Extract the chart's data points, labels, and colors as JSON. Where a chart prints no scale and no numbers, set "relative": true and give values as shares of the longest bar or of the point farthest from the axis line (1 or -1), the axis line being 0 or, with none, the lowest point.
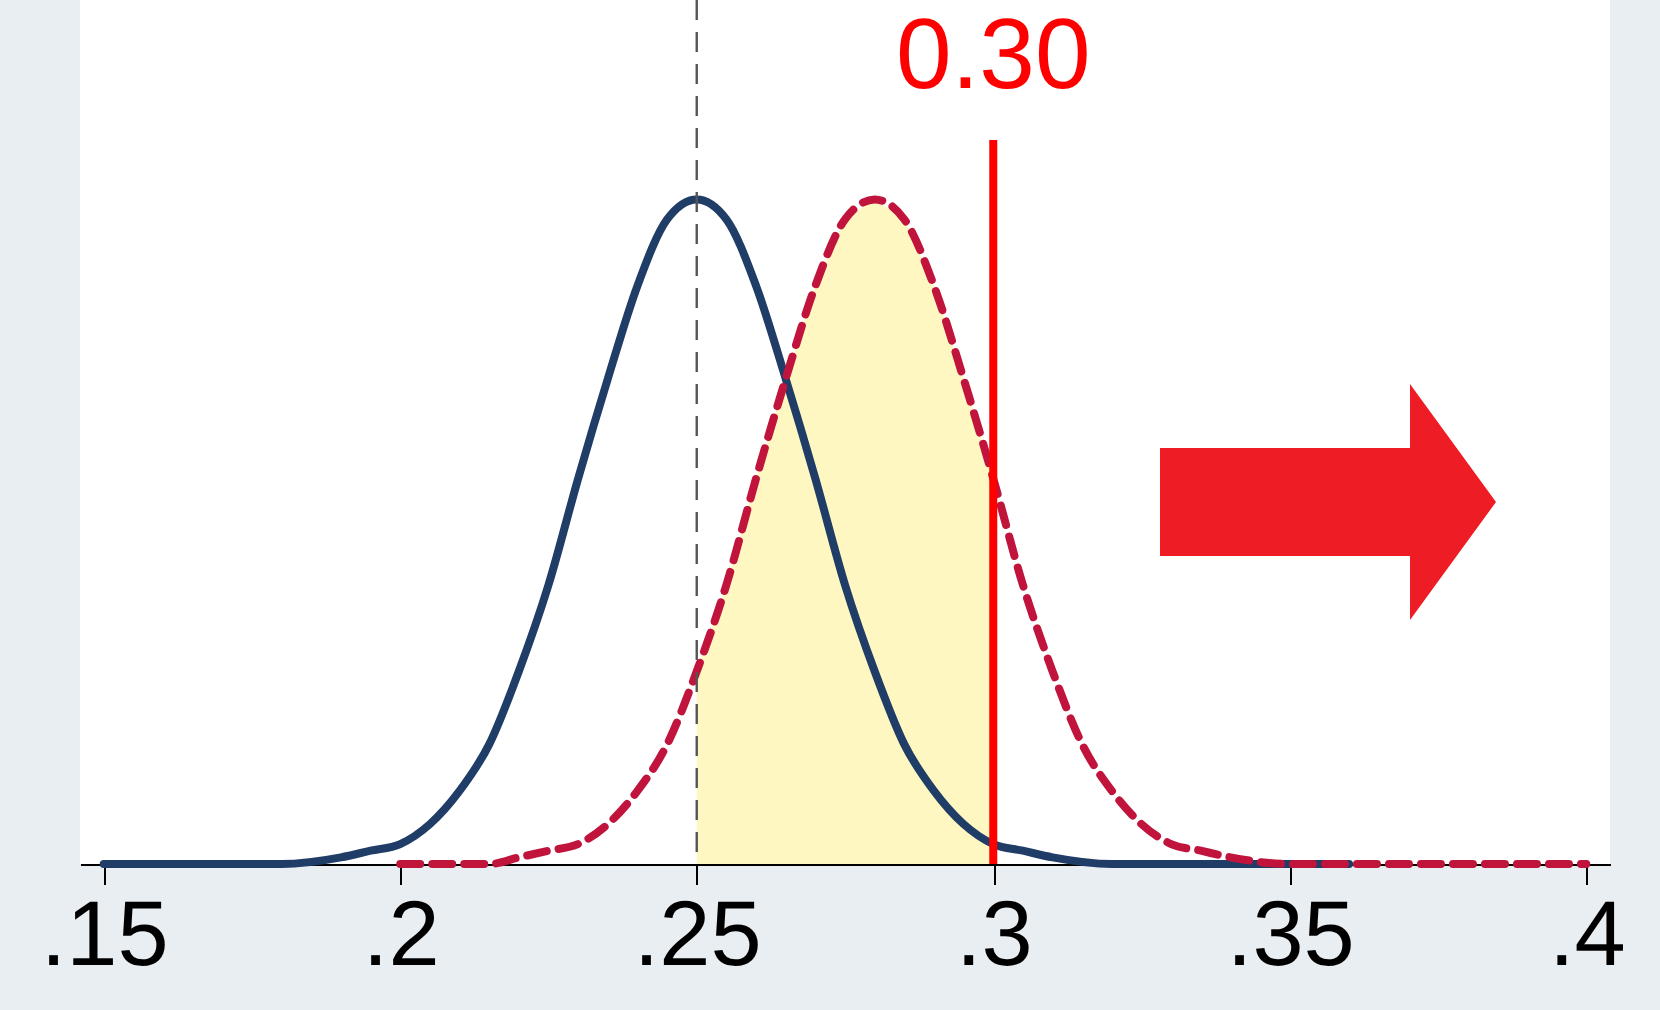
{
  "chart_data": {
    "type": "line",
    "relative": true,
    "marker": "none",
    "xlim": [
      0.146,
      0.404
    ],
    "xticks": [
      {
        "value": 0.15,
        "label": ".15"
      },
      {
        "value": 0.2,
        "label": ".2"
      },
      {
        "value": 0.25,
        "label": ".25"
      },
      {
        "value": 0.3,
        "label": ".3"
      },
      {
        "value": 0.35,
        "label": ".35"
      },
      {
        "value": 0.4,
        "label": ".4"
      }
    ],
    "series": [
      {
        "type": "area",
        "color": "#fff7c2",
        "x": [
          0.25,
          0.255,
          0.26,
          0.265,
          0.27,
          0.275,
          0.28,
          0.285,
          0.29,
          0.295,
          0.3
        ],
        "values": [
          0.29,
          0.42,
          0.58,
          0.73,
          0.87,
          0.97,
          1,
          0.97,
          0.87,
          0.73,
          0.58
        ]
      },
      {
        "color": "#1f3d66",
        "line_style": "solid",
        "x": [
          0.15,
          0.18,
          0.19,
          0.195,
          0.2,
          0.205,
          0.21,
          0.215,
          0.22,
          0.225,
          0.23,
          0.235,
          0.24,
          0.245,
          0.25,
          0.255,
          0.26,
          0.265,
          0.27,
          0.275,
          0.28,
          0.285,
          0.29,
          0.295,
          0.3,
          0.305,
          0.31,
          0.32,
          0.36
        ],
        "values": [
          0,
          0,
          0.01,
          0.02,
          0.03,
          0.06,
          0.11,
          0.18,
          0.29,
          0.42,
          0.58,
          0.73,
          0.87,
          0.97,
          1,
          0.97,
          0.87,
          0.73,
          0.58,
          0.42,
          0.29,
          0.18,
          0.11,
          0.06,
          0.03,
          0.02,
          0.01,
          0,
          0
        ]
      },
      {
        "color": "#c0143c",
        "line_style": "dashed",
        "x": [
          0.2,
          0.215,
          0.22,
          0.225,
          0.23,
          0.235,
          0.24,
          0.245,
          0.25,
          0.255,
          0.26,
          0.265,
          0.27,
          0.275,
          0.28,
          0.285,
          0.29,
          0.295,
          0.3,
          0.305,
          0.31,
          0.315,
          0.32,
          0.325,
          0.33,
          0.335,
          0.34,
          0.35,
          0.4
        ],
        "values": [
          0,
          0,
          0.01,
          0.02,
          0.03,
          0.06,
          0.11,
          0.18,
          0.29,
          0.42,
          0.58,
          0.73,
          0.87,
          0.97,
          1,
          0.97,
          0.87,
          0.73,
          0.58,
          0.42,
          0.29,
          0.18,
          0.11,
          0.06,
          0.03,
          0.02,
          0.01,
          0,
          0
        ]
      }
    ],
    "ref_lines": [
      {
        "axis": "x",
        "value": 0.25,
        "color": "#555555",
        "line_style": "dashed"
      },
      {
        "axis": "x",
        "value": 0.3,
        "label": "0.30",
        "color": "#ff0000",
        "line_style": "solid"
      }
    ]
  }
}
